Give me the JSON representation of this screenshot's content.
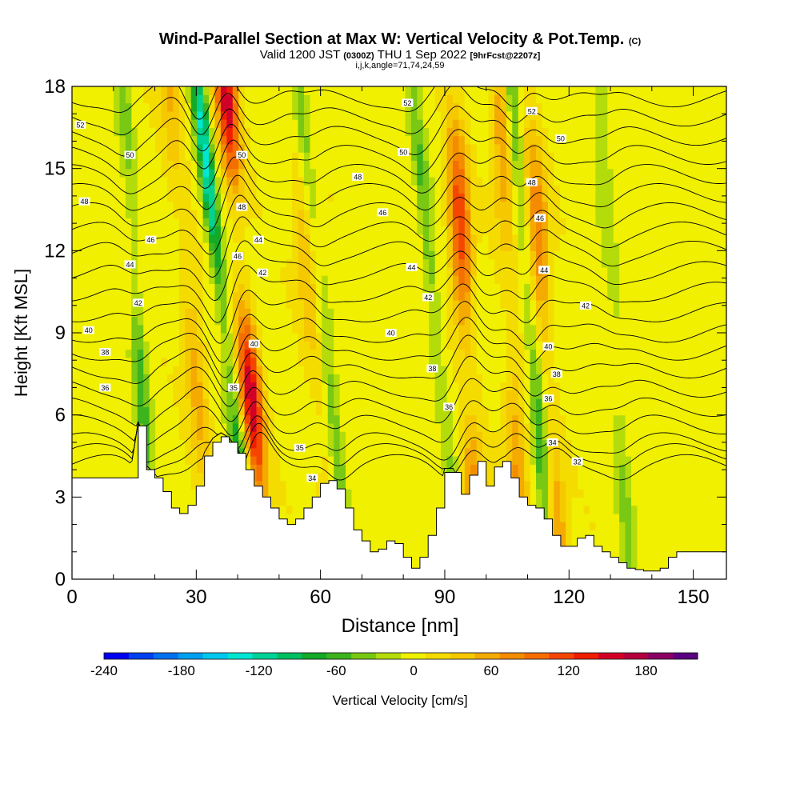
{
  "header": {
    "title_main": "Wind-Parallel Section at Max W: Vertical Velocity & Pot.Temp.",
    "title_mark": "(C)",
    "valid_prefix": "Valid 1200 JST",
    "valid_utc": "(0300Z)",
    "valid_date": "THU 1 Sep 2022",
    "forecast": "[9hrFcst@2207z]",
    "indices": "i,j,k,angle=71,74,24,59"
  },
  "chart_data": {
    "type": "heatmap",
    "xlabel": "Distance [nm]",
    "ylabel": "Height [Kft MSL]",
    "xlim": [
      0,
      158
    ],
    "ylim": [
      0,
      18
    ],
    "xticks": [
      0,
      30,
      60,
      90,
      120,
      150
    ],
    "yticks": [
      0,
      3,
      6,
      9,
      12,
      15,
      18
    ],
    "colorbar": {
      "label": "Vertical Velocity [cm/s]",
      "ticks": [
        -240,
        -180,
        -120,
        -60,
        0,
        60,
        120,
        180
      ],
      "range": [
        -240,
        220
      ],
      "step": 20,
      "colors": [
        "#0000f0",
        "#0040f0",
        "#0070f0",
        "#00a0f0",
        "#00c8f0",
        "#00e6d2",
        "#00d296",
        "#00be64",
        "#14aa28",
        "#3cb41e",
        "#78c814",
        "#b4dc0a",
        "#f0f000",
        "#f5dc00",
        "#f5c800",
        "#f5aa00",
        "#f58c00",
        "#f56e00",
        "#f54600",
        "#f01e00",
        "#d20028",
        "#b4003c",
        "#8c0064",
        "#5a0082"
      ]
    },
    "terrain_height_kft": {
      "x": [
        0,
        14,
        16,
        18,
        20,
        22,
        24,
        26,
        28,
        30,
        32,
        34,
        36,
        38,
        40,
        42,
        44,
        46,
        48,
        50,
        52,
        54,
        56,
        58,
        60,
        62,
        64,
        66,
        68,
        70,
        72,
        74,
        76,
        78,
        80,
        82,
        84,
        86,
        88,
        90,
        92,
        94,
        96,
        98,
        100,
        102,
        104,
        106,
        108,
        110,
        112,
        114,
        116,
        118,
        120,
        122,
        124,
        126,
        128,
        130,
        132,
        134,
        136,
        138,
        140,
        142,
        144,
        146,
        148,
        150,
        152,
        154,
        156,
        158
      ],
      "y": [
        3.7,
        3.7,
        5.6,
        4.0,
        3.7,
        3.2,
        2.6,
        2.4,
        2.7,
        3.4,
        4.5,
        5.0,
        5.2,
        5.0,
        4.6,
        4.0,
        3.4,
        3.0,
        2.6,
        2.2,
        2.0,
        2.2,
        2.6,
        3.0,
        3.5,
        3.6,
        3.3,
        2.6,
        1.8,
        1.4,
        1.0,
        1.1,
        1.4,
        1.3,
        0.8,
        0.4,
        0.8,
        1.6,
        2.6,
        3.9,
        3.9,
        3.1,
        3.8,
        4.3,
        3.4,
        4.1,
        4.3,
        3.7,
        3.0,
        2.7,
        2.6,
        2.2,
        1.6,
        1.2,
        1.2,
        1.5,
        1.6,
        1.2,
        1.0,
        0.8,
        0.6,
        0.4,
        0.35,
        0.3,
        0.3,
        0.4,
        0.8,
        1.0,
        1.0,
        1.0,
        1.0,
        1.0,
        1.0,
        1.0
      ]
    },
    "updraft_bands": [
      {
        "center_nm": 42,
        "slope_nm_per_kft": -0.55,
        "peak_w": 160
      },
      {
        "center_nm": 58,
        "slope_nm_per_kft": -0.5,
        "peak_w": 50
      },
      {
        "center_nm": 95,
        "slope_nm_per_kft": -0.35,
        "peak_w": 130
      },
      {
        "center_nm": 106,
        "slope_nm_per_kft": -0.3,
        "peak_w": 70
      },
      {
        "center_nm": 114,
        "slope_nm_per_kft": -0.4,
        "peak_w": 90
      },
      {
        "center_nm": 29,
        "slope_nm_per_kft": -0.6,
        "peak_w": 60
      }
    ],
    "downdraft_bands": [
      {
        "center_nm": 37,
        "slope_nm_per_kft": -0.75,
        "peak_w": -140
      },
      {
        "center_nm": 16,
        "slope_nm_per_kft": -0.4,
        "peak_w": -60
      },
      {
        "center_nm": 61,
        "slope_nm_per_kft": -0.7,
        "peak_w": -60
      },
      {
        "center_nm": 88,
        "slope_nm_per_kft": -0.65,
        "peak_w": -55
      },
      {
        "center_nm": 111,
        "slope_nm_per_kft": -0.55,
        "peak_w": -80
      },
      {
        "center_nm": 131,
        "slope_nm_per_kft": -0.4,
        "peak_w": -35
      }
    ],
    "theta_contours": {
      "levels": [
        32,
        34,
        36,
        38,
        40,
        42,
        44,
        46,
        48,
        50,
        52
      ],
      "base_height_kft": [
        4.2,
        5.0,
        6.3,
        7.7,
        9.0,
        10.5,
        12.0,
        13.4,
        14.8,
        16.2,
        17.6
      ],
      "labels": [
        {
          "x": 122,
          "y": 4.3,
          "text": "32"
        },
        {
          "x": 116,
          "y": 5.0,
          "text": "34"
        },
        {
          "x": 58,
          "y": 3.7,
          "text": "34"
        },
        {
          "x": 55,
          "y": 4.8,
          "text": "35"
        },
        {
          "x": 39,
          "y": 7.0,
          "text": "35"
        },
        {
          "x": 8,
          "y": 7.0,
          "text": "36"
        },
        {
          "x": 91,
          "y": 6.3,
          "text": "36"
        },
        {
          "x": 115,
          "y": 6.6,
          "text": "36"
        },
        {
          "x": 8,
          "y": 8.3,
          "text": "38"
        },
        {
          "x": 87,
          "y": 7.7,
          "text": "38"
        },
        {
          "x": 117,
          "y": 7.5,
          "text": "38"
        },
        {
          "x": 4,
          "y": 9.1,
          "text": "40"
        },
        {
          "x": 44,
          "y": 8.6,
          "text": "40"
        },
        {
          "x": 77,
          "y": 9.0,
          "text": "40"
        },
        {
          "x": 115,
          "y": 8.5,
          "text": "40"
        },
        {
          "x": 16,
          "y": 10.1,
          "text": "42"
        },
        {
          "x": 46,
          "y": 11.2,
          "text": "42"
        },
        {
          "x": 86,
          "y": 10.3,
          "text": "42"
        },
        {
          "x": 124,
          "y": 10.0,
          "text": "42"
        },
        {
          "x": 14,
          "y": 11.5,
          "text": "44"
        },
        {
          "x": 45,
          "y": 12.4,
          "text": "44"
        },
        {
          "x": 82,
          "y": 11.4,
          "text": "44"
        },
        {
          "x": 114,
          "y": 11.3,
          "text": "44"
        },
        {
          "x": 19,
          "y": 12.4,
          "text": "46"
        },
        {
          "x": 40,
          "y": 11.8,
          "text": "46"
        },
        {
          "x": 75,
          "y": 13.4,
          "text": "46"
        },
        {
          "x": 113,
          "y": 13.2,
          "text": "46"
        },
        {
          "x": 3,
          "y": 13.8,
          "text": "48"
        },
        {
          "x": 41,
          "y": 13.6,
          "text": "48"
        },
        {
          "x": 69,
          "y": 14.7,
          "text": "48"
        },
        {
          "x": 111,
          "y": 14.5,
          "text": "48"
        },
        {
          "x": 14,
          "y": 15.5,
          "text": "50"
        },
        {
          "x": 41,
          "y": 15.5,
          "text": "50"
        },
        {
          "x": 80,
          "y": 15.6,
          "text": "50"
        },
        {
          "x": 118,
          "y": 16.1,
          "text": "50"
        },
        {
          "x": 2,
          "y": 16.6,
          "text": "52"
        },
        {
          "x": 81,
          "y": 17.4,
          "text": "52"
        },
        {
          "x": 111,
          "y": 17.1,
          "text": "52"
        }
      ]
    }
  }
}
